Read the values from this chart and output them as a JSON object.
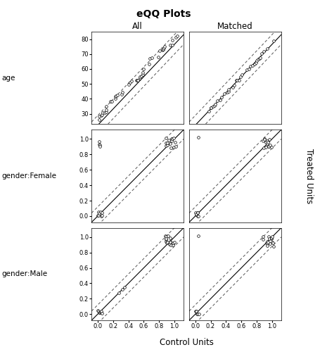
{
  "title": "eQQ Plots",
  "col_labels": [
    "All",
    "Matched"
  ],
  "row_labels": [
    "age",
    "gender:Female",
    "gender:Male"
  ],
  "ylabel": "Treated Units",
  "xlabel": "Control Units",
  "age_all_yticks": [
    30,
    40,
    50,
    60,
    70,
    80
  ],
  "age_all_xlim": [
    18,
    83
  ],
  "age_all_ylim": [
    23,
    85
  ],
  "age_matched_yticks": [
    30,
    40,
    50,
    60,
    70,
    80
  ],
  "age_matched_xlim": [
    18,
    83
  ],
  "age_matched_ylim": [
    23,
    85
  ],
  "bin_yticks": [
    0.0,
    0.2,
    0.4,
    0.6,
    0.8,
    1.0
  ],
  "bin_xlim": [
    -0.08,
    1.12
  ],
  "bin_ylim": [
    -0.08,
    1.12
  ],
  "background_color": "#ffffff"
}
